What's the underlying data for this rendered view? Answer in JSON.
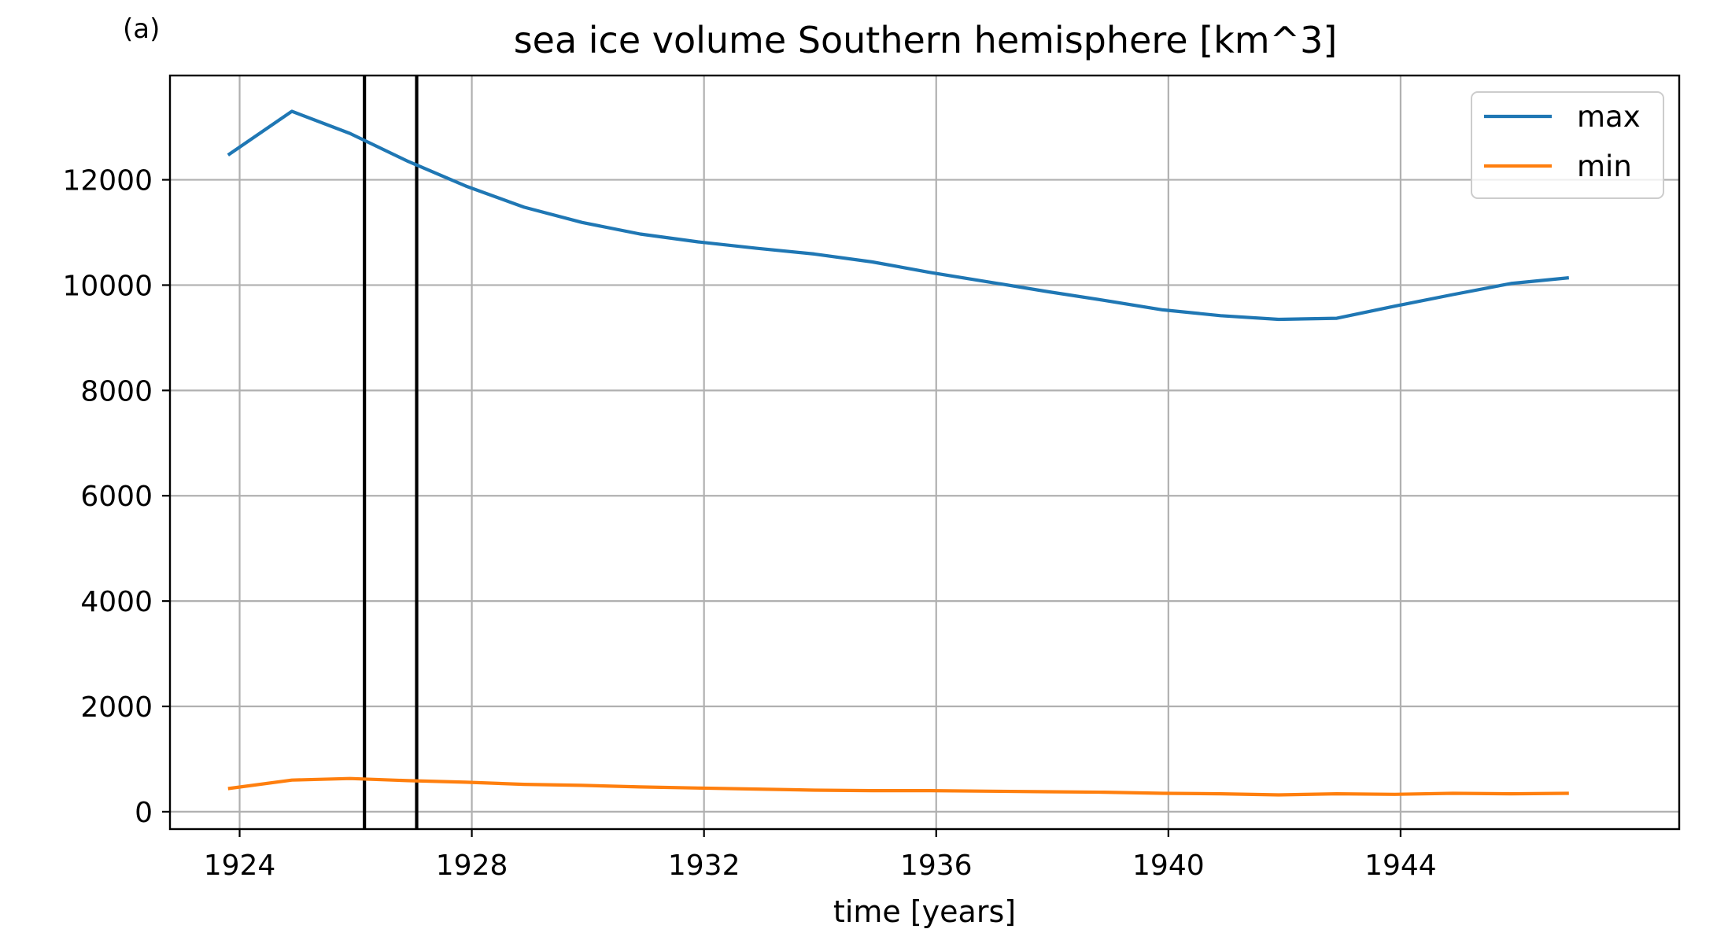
{
  "panel_label": "(a)",
  "chart_data": {
    "type": "line",
    "title": "sea ice volume Southern hemisphere [km^3]",
    "xlabel": "time [years]",
    "ylabel": "",
    "xlim": [
      1922.8,
      1948.8
    ],
    "ylim": [
      -330,
      13980
    ],
    "xticks": [
      1924,
      1928,
      1932,
      1936,
      1940,
      1944
    ],
    "yticks": [
      0,
      2000,
      4000,
      6000,
      8000,
      10000,
      12000
    ],
    "grid": true,
    "legend_position": "top-right",
    "vertical_lines": [
      1926.15,
      1927.05
    ],
    "series": [
      {
        "name": "max",
        "color": "#1f77b4",
        "x": [
          1923.8,
          1924.9,
          1925.9,
          1926.9,
          1927.9,
          1928.9,
          1929.9,
          1930.9,
          1931.9,
          1932.9,
          1933.9,
          1934.9,
          1935.9,
          1936.9,
          1937.9,
          1938.9,
          1939.9,
          1940.9,
          1941.9,
          1942.9,
          1943.9,
          1944.9,
          1945.9,
          1946.9
        ],
        "y": [
          12470,
          13300,
          12880,
          12350,
          11880,
          11480,
          11190,
          10970,
          10820,
          10700,
          10590,
          10440,
          10240,
          10060,
          9880,
          9710,
          9530,
          9420,
          9350,
          9370,
          9600,
          9820,
          10030,
          10140
        ]
      },
      {
        "name": "min",
        "color": "#ff7f0e",
        "x": [
          1923.8,
          1924.9,
          1925.9,
          1926.9,
          1927.9,
          1928.9,
          1929.9,
          1930.9,
          1931.9,
          1932.9,
          1933.9,
          1934.9,
          1935.9,
          1936.9,
          1937.9,
          1938.9,
          1939.9,
          1940.9,
          1941.9,
          1942.9,
          1943.9,
          1944.9,
          1945.9,
          1946.9
        ],
        "y": [
          440,
          600,
          630,
          590,
          560,
          520,
          500,
          470,
          450,
          430,
          410,
          400,
          400,
          390,
          380,
          370,
          350,
          340,
          320,
          340,
          330,
          350,
          340,
          350
        ]
      }
    ]
  }
}
